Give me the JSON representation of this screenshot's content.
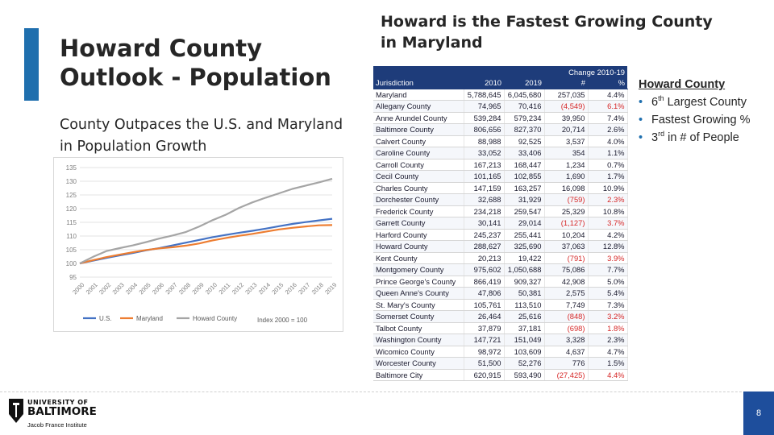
{
  "left": {
    "title": "Howard County Outlook - Population",
    "subtitle": "County Outpaces the U.S. and Maryland in Population Growth"
  },
  "chart_data": {
    "type": "line",
    "title": "",
    "note": "Index 2000 = 100",
    "xlabel": "",
    "ylabel": "",
    "x": [
      "2000",
      "2001",
      "2002",
      "2003",
      "2004",
      "2005",
      "2006",
      "2007",
      "2008",
      "2009",
      "2010",
      "2011",
      "2012",
      "2013",
      "2014",
      "2015",
      "2016",
      "2017",
      "2018",
      "2019"
    ],
    "ylim": [
      95,
      135
    ],
    "yticks": [
      95,
      100,
      105,
      110,
      115,
      120,
      125,
      130,
      135
    ],
    "series": [
      {
        "name": "U.S.",
        "color": "#4472c4",
        "values": [
          100,
          101,
          102,
          102.9,
          103.8,
          104.8,
          105.6,
          106.6,
          107.6,
          108.6,
          109.6,
          110.4,
          111.2,
          111.9,
          112.7,
          113.6,
          114.4,
          115.1,
          115.7,
          116.3
        ]
      },
      {
        "name": "Maryland",
        "color": "#ed7d31",
        "values": [
          100,
          101.2,
          102.3,
          103.2,
          104.1,
          104.9,
          105.5,
          105.9,
          106.5,
          107.3,
          108.4,
          109.3,
          110.1,
          110.8,
          111.6,
          112.4,
          113.0,
          113.5,
          113.9,
          114.0
        ]
      },
      {
        "name": "Howard County",
        "color": "#a5a5a5",
        "values": [
          100,
          102.4,
          104.5,
          105.6,
          106.6,
          107.8,
          109.1,
          110.2,
          111.5,
          113.5,
          115.8,
          117.8,
          120.3,
          122.3,
          124.0,
          125.6,
          127.2,
          128.4,
          129.6,
          130.9
        ]
      }
    ]
  },
  "right": {
    "title": "Howard is the Fastest Growing County in Maryland",
    "table": {
      "group_header": "Change 2010-19",
      "columns": [
        "Jurisdiction",
        "2010",
        "2019",
        "#",
        "%"
      ],
      "rows": [
        [
          "Maryland",
          "5,788,645",
          "6,045,680",
          "257,035",
          "4.4%"
        ],
        [
          "Allegany County",
          "74,965",
          "70,416",
          "(4,549)",
          "6.1%"
        ],
        [
          "Anne Arundel County",
          "539,284",
          "579,234",
          "39,950",
          "7.4%"
        ],
        [
          "Baltimore County",
          "806,656",
          "827,370",
          "20,714",
          "2.6%"
        ],
        [
          "Calvert County",
          "88,988",
          "92,525",
          "3,537",
          "4.0%"
        ],
        [
          "Caroline County",
          "33,052",
          "33,406",
          "354",
          "1.1%"
        ],
        [
          "Carroll County",
          "167,213",
          "168,447",
          "1,234",
          "0.7%"
        ],
        [
          "Cecil County",
          "101,165",
          "102,855",
          "1,690",
          "1.7%"
        ],
        [
          "Charles County",
          "147,159",
          "163,257",
          "16,098",
          "10.9%"
        ],
        [
          "Dorchester County",
          "32,688",
          "31,929",
          "(759)",
          "2.3%"
        ],
        [
          "Frederick County",
          "234,218",
          "259,547",
          "25,329",
          "10.8%"
        ],
        [
          "Garrett County",
          "30,141",
          "29,014",
          "(1,127)",
          "3.7%"
        ],
        [
          "Harford County",
          "245,237",
          "255,441",
          "10,204",
          "4.2%"
        ],
        [
          "Howard County",
          "288,627",
          "325,690",
          "37,063",
          "12.8%"
        ],
        [
          "Kent County",
          "20,213",
          "19,422",
          "(791)",
          "3.9%"
        ],
        [
          "Montgomery County",
          "975,602",
          "1,050,688",
          "75,086",
          "7.7%"
        ],
        [
          "Prince George's County",
          "866,419",
          "909,327",
          "42,908",
          "5.0%"
        ],
        [
          "Queen Anne's County",
          "47,806",
          "50,381",
          "2,575",
          "5.4%"
        ],
        [
          "St. Mary's County",
          "105,761",
          "113,510",
          "7,749",
          "7.3%"
        ],
        [
          "Somerset County",
          "26,464",
          "25,616",
          "(848)",
          "3.2%"
        ],
        [
          "Talbot County",
          "37,879",
          "37,181",
          "(698)",
          "1.8%"
        ],
        [
          "Washington County",
          "147,721",
          "151,049",
          "3,328",
          "2.3%"
        ],
        [
          "Wicomico County",
          "98,972",
          "103,609",
          "4,637",
          "4.7%"
        ],
        [
          "Worcester County",
          "51,500",
          "52,276",
          "776",
          "1.5%"
        ],
        [
          "Baltimore City",
          "620,915",
          "593,490",
          "(27,425)",
          "4.4%"
        ]
      ]
    },
    "list": {
      "heading": "Howard County",
      "bullet_glyph": "•",
      "items": [
        {
          "pre": "6",
          "sup": "th",
          "post": " Largest County"
        },
        {
          "pre": "Fastest Growing %",
          "sup": "",
          "post": ""
        },
        {
          "pre": "3",
          "sup": "rd",
          "post": " in # of People"
        }
      ]
    }
  },
  "footer": {
    "logo_line1": "UNIVERSITY OF",
    "logo_line2": "BALTIMORE",
    "logo_line3": "Jacob France Institute",
    "page_number": "8"
  },
  "colors": {
    "accent": "#1f6fae",
    "table_header": "#1e3c7a",
    "negative": "#d62828",
    "page_box": "#1e4e9c"
  }
}
